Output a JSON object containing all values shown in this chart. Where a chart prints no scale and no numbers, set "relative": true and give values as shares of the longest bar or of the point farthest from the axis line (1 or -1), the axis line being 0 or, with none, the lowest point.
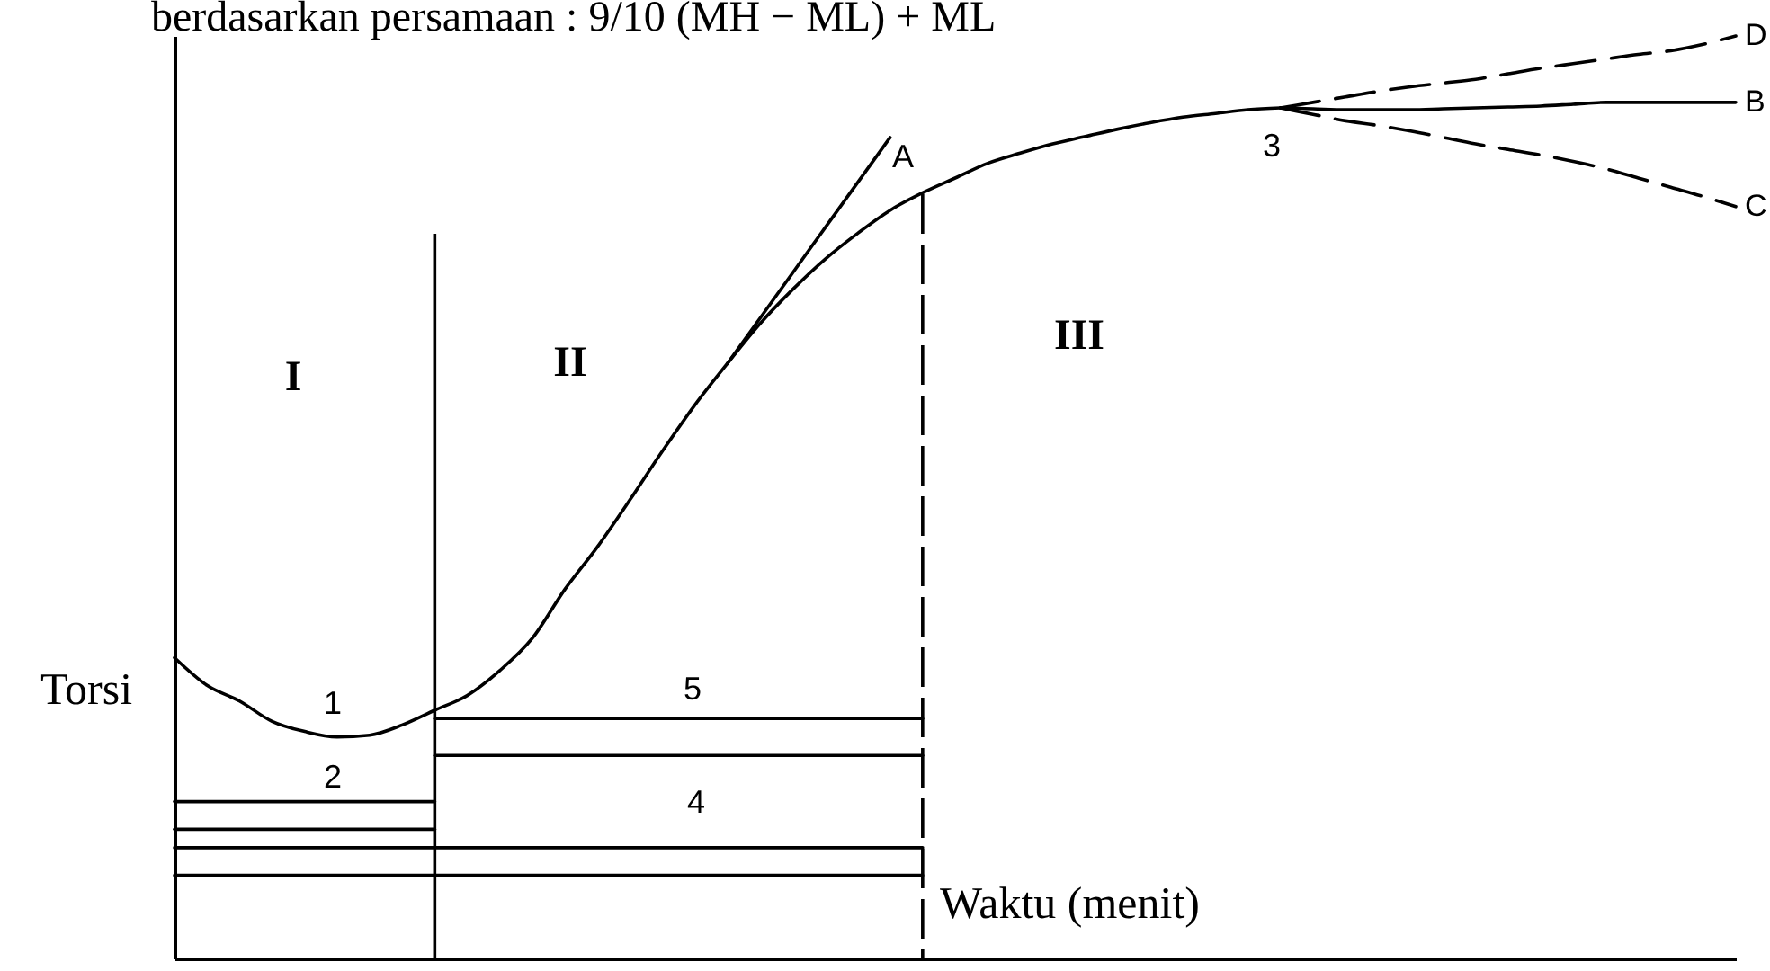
{
  "chart_data": {
    "type": "line",
    "relative": true,
    "xlabel": "Waktu (menit)",
    "ylabel": "Torsi",
    "categories": [
      null,
      null,
      null,
      null,
      null,
      null,
      null,
      null,
      null,
      null,
      null,
      null,
      null,
      null,
      null,
      null,
      null,
      null,
      null,
      null,
      null,
      null,
      null,
      null,
      null,
      null,
      null,
      null,
      null,
      null,
      null,
      null,
      null,
      null,
      null,
      null,
      null,
      null,
      null,
      null,
      null,
      null,
      null,
      null,
      null,
      null,
      null,
      null,
      null
    ],
    "series": [
      {
        "color": "#000000",
        "values": [
          0.326,
          0.296,
          0.279,
          0.257,
          0.246,
          0.24,
          0.242,
          0.253,
          0.269,
          0.285,
          0.312,
          0.347,
          0.4,
          0.446,
          0.497,
          0.55,
          0.6,
          0.645,
          0.688,
          0.725,
          0.758,
          0.786,
          0.811,
          0.83,
          0.846,
          0.862,
          0.873,
          0.883,
          0.891,
          0.899,
          0.906,
          0.912,
          0.916,
          0.92,
          0.922,
          null,
          null,
          null,
          null,
          null,
          null,
          null,
          null,
          null,
          null,
          null,
          null,
          null,
          null
        ]
      },
      {
        "color": "#000000",
        "values": [
          null,
          null,
          null,
          null,
          null,
          null,
          null,
          null,
          null,
          null,
          null,
          null,
          null,
          null,
          null,
          null,
          null,
          0.645,
          0.694,
          0.743,
          0.792,
          0.841,
          0.89,
          null,
          null,
          null,
          null,
          null,
          null,
          null,
          null,
          null,
          null,
          null,
          null,
          null,
          null,
          null,
          null,
          null,
          null,
          null,
          null,
          null,
          null,
          null,
          null,
          null,
          null
        ]
      },
      {
        "name": "D",
        "color": "#000000",
        "line_style": "dashed",
        "values": [
          null,
          null,
          null,
          null,
          null,
          null,
          null,
          null,
          null,
          null,
          null,
          null,
          null,
          null,
          null,
          null,
          null,
          null,
          null,
          null,
          null,
          null,
          null,
          null,
          null,
          null,
          null,
          null,
          null,
          null,
          null,
          null,
          null,
          null,
          0.922,
          0.928,
          0.934,
          0.94,
          0.945,
          0.949,
          0.953,
          0.959,
          0.965,
          0.97,
          0.975,
          0.98,
          0.984,
          0.991,
          1.0
        ]
      },
      {
        "name": "B",
        "color": "#000000",
        "values": [
          null,
          null,
          null,
          null,
          null,
          null,
          null,
          null,
          null,
          null,
          null,
          null,
          null,
          null,
          null,
          null,
          null,
          null,
          null,
          null,
          null,
          null,
          null,
          null,
          null,
          null,
          null,
          null,
          null,
          null,
          null,
          null,
          null,
          null,
          0.922,
          0.921,
          0.92,
          0.92,
          0.92,
          0.921,
          0.922,
          0.923,
          0.924,
          0.926,
          0.928,
          0.928,
          0.928,
          0.928,
          0.928
        ]
      },
      {
        "name": "C",
        "color": "#000000",
        "line_style": "dashed",
        "values": [
          null,
          null,
          null,
          null,
          null,
          null,
          null,
          null,
          null,
          null,
          null,
          null,
          null,
          null,
          null,
          null,
          null,
          null,
          null,
          null,
          null,
          null,
          null,
          null,
          null,
          null,
          null,
          null,
          null,
          null,
          null,
          null,
          null,
          null,
          0.922,
          0.915,
          0.908,
          0.903,
          0.897,
          0.89,
          0.883,
          0.877,
          0.871,
          0.864,
          0.856,
          0.846,
          0.836,
          0.826,
          0.815
        ]
      },
      {
        "color": "#000000",
        "values": [
          0.17,
          0.17,
          0.17,
          0.17,
          0.17,
          0.17,
          0.17,
          0.17,
          0.17,
          null,
          null,
          null,
          null,
          null,
          null,
          null,
          null,
          null,
          null,
          null,
          null,
          null,
          null,
          null,
          null,
          null,
          null,
          null,
          null,
          null,
          null,
          null,
          null,
          null,
          null,
          null,
          null,
          null,
          null,
          null,
          null,
          null,
          null,
          null,
          null,
          null,
          null,
          null,
          null
        ]
      },
      {
        "color": "#000000",
        "values": [
          0.14,
          0.14,
          0.14,
          0.14,
          0.14,
          0.14,
          0.14,
          0.14,
          0.14,
          null,
          null,
          null,
          null,
          null,
          null,
          null,
          null,
          null,
          null,
          null,
          null,
          null,
          null,
          null,
          null,
          null,
          null,
          null,
          null,
          null,
          null,
          null,
          null,
          null,
          null,
          null,
          null,
          null,
          null,
          null,
          null,
          null,
          null,
          null,
          null,
          null,
          null,
          null,
          null
        ]
      },
      {
        "color": "#000000",
        "values": [
          0.12,
          0.12,
          0.12,
          0.12,
          0.12,
          0.12,
          0.12,
          0.12,
          0.12,
          0.12,
          0.12,
          0.12,
          0.12,
          0.12,
          0.12,
          0.12,
          0.12,
          0.12,
          0.12,
          0.12,
          0.12,
          0.12,
          0.12,
          0.12,
          null,
          null,
          null,
          null,
          null,
          null,
          null,
          null,
          null,
          null,
          null,
          null,
          null,
          null,
          null,
          null,
          null,
          null,
          null,
          null,
          null,
          null,
          null,
          null,
          null
        ]
      },
      {
        "color": "#000000",
        "values": [
          0.09,
          0.09,
          0.09,
          0.09,
          0.09,
          0.09,
          0.09,
          0.09,
          0.09,
          0.09,
          0.09,
          0.09,
          0.09,
          0.09,
          0.09,
          0.09,
          0.09,
          0.09,
          0.09,
          0.09,
          0.09,
          0.09,
          0.09,
          0.09,
          null,
          null,
          null,
          null,
          null,
          null,
          null,
          null,
          null,
          null,
          null,
          null,
          null,
          null,
          null,
          null,
          null,
          null,
          null,
          null,
          null,
          null,
          null,
          null,
          null
        ]
      },
      {
        "color": "#000000",
        "values": [
          null,
          null,
          null,
          null,
          null,
          null,
          null,
          null,
          0.26,
          0.26,
          0.26,
          0.26,
          0.26,
          0.26,
          0.26,
          0.26,
          0.26,
          0.26,
          0.26,
          0.26,
          0.26,
          0.26,
          0.26,
          0.26,
          null,
          null,
          null,
          null,
          null,
          null,
          null,
          null,
          null,
          null,
          null,
          null,
          null,
          null,
          null,
          null,
          null,
          null,
          null,
          null,
          null,
          null,
          null,
          null,
          null
        ]
      },
      {
        "color": "#000000",
        "values": [
          null,
          null,
          null,
          null,
          null,
          null,
          null,
          null,
          0.22,
          0.22,
          0.22,
          0.22,
          0.22,
          0.22,
          0.22,
          0.22,
          0.22,
          0.22,
          0.22,
          0.22,
          0.22,
          0.22,
          0.22,
          0.22,
          null,
          null,
          null,
          null,
          null,
          null,
          null,
          null,
          null,
          null,
          null,
          null,
          null,
          null,
          null,
          null,
          null,
          null,
          null,
          null,
          null,
          null,
          null,
          null,
          null
        ]
      }
    ],
    "annotations": [
      "berdasarkan persamaan : 9/10 (MH − ML) + ML",
      "I",
      "II",
      "III",
      "1",
      "2",
      "3",
      "4",
      "5",
      "A"
    ]
  }
}
